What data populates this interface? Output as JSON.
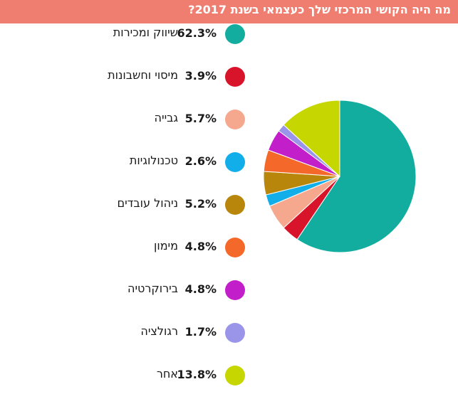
{
  "title": "מה היה הקושי המרכזי שלך כעצמאי בשנת 2017?",
  "chart_data": {
    "type": "pie",
    "title": "מה היה הקושי המרכזי שלך כעצמאי בשנת 2017?",
    "legend_position": "left",
    "slices": [
      {
        "label": "שיווק ומכירות",
        "value": 62.3,
        "pct_label": "62.3%",
        "color": "#13ada0"
      },
      {
        "label": "מיסוי וחשבונות",
        "value": 3.9,
        "pct_label": "3.9%",
        "color": "#d8142a"
      },
      {
        "label": "גבייה",
        "value": 5.7,
        "pct_label": "5.7%",
        "color": "#f6a88f"
      },
      {
        "label": "טכנולוגיות",
        "value": 2.6,
        "pct_label": "2.6%",
        "color": "#12aeea"
      },
      {
        "label": "ניהול עובדים",
        "value": 5.2,
        "pct_label": "5.2%",
        "color": "#b8860b"
      },
      {
        "label": "מימון",
        "value": 4.8,
        "pct_label": "4.8%",
        "color": "#f4692a"
      },
      {
        "label": "בירוקרטיה",
        "value": 4.8,
        "pct_label": "4.8%",
        "color": "#c21ec9"
      },
      {
        "label": "רגולציה",
        "value": 1.7,
        "pct_label": "1.7%",
        "color": "#9a95e8"
      },
      {
        "label": "אחר",
        "value": 13.8,
        "pct_label": "13.8%",
        "color": "#c5d600"
      }
    ]
  }
}
